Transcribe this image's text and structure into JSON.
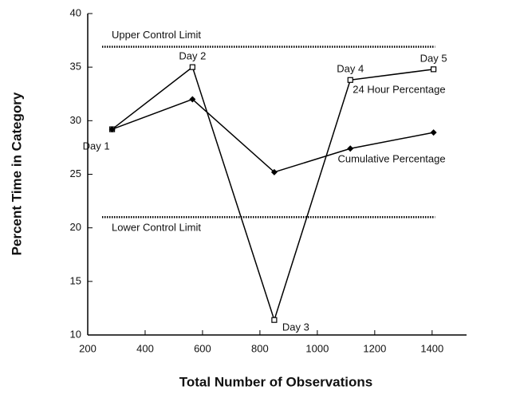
{
  "chart_data": {
    "type": "line",
    "xlabel": "Total Number of Observations",
    "ylabel": "Percent Time in Category",
    "x": [
      285,
      565,
      850,
      1115,
      1405
    ],
    "point_labels": [
      "Day 1",
      "Day 2",
      "Day 3",
      "Day 4",
      "Day 5"
    ],
    "series": [
      {
        "name": "24 Hour Percentage",
        "color": "#000000",
        "marker": "square",
        "values": [
          29.2,
          35,
          11.4,
          33.8,
          34.8
        ]
      },
      {
        "name": "Cumulative Percentage",
        "color": "#000000",
        "marker": "diamond",
        "values": [
          29.2,
          32,
          25.2,
          27.4,
          28.9
        ]
      }
    ],
    "control_limits": [
      {
        "label": "Upper Control Limit",
        "value": 36.9,
        "x": [
          250,
          1410
        ]
      },
      {
        "label": "Lower Control Limit",
        "value": 21,
        "x": [
          250,
          1410
        ]
      }
    ],
    "xlim": [
      200,
      1520
    ],
    "xticks": [
      200,
      400,
      600,
      800,
      1000,
      1200,
      1400
    ],
    "ylim": [
      10,
      40
    ],
    "yticks": [
      10,
      15,
      20,
      25,
      30,
      35,
      40
    ]
  }
}
